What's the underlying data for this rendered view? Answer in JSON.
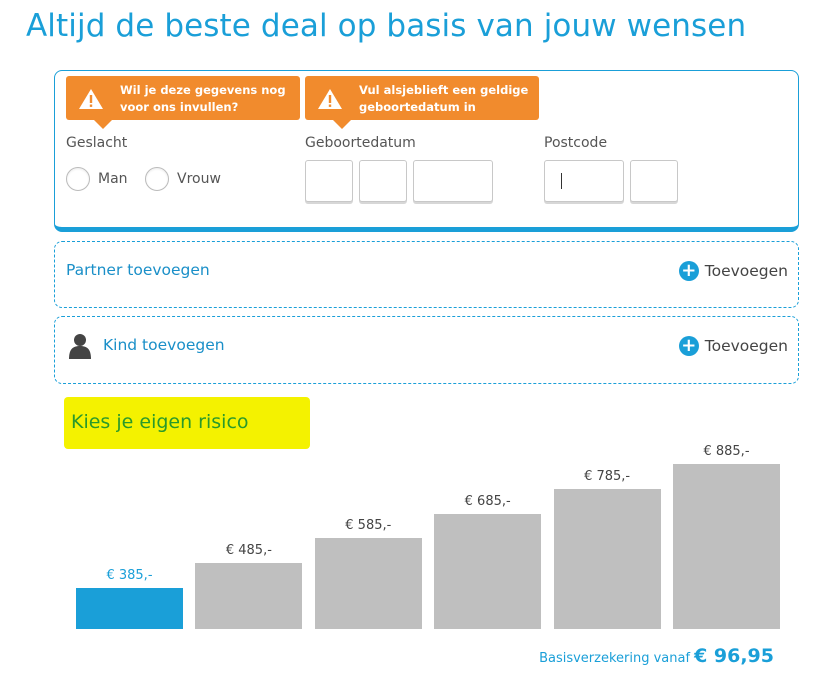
{
  "heading": "Altijd de beste deal op basis van jouw wensen",
  "form": {
    "tooltip_gender": "Wil je deze gegevens nog voor ons invullen?",
    "tooltip_birthdate": "Vul alsjeblieft een geldige geboortedatum in",
    "gender_label": "Geslacht",
    "gender_options": [
      "Man",
      "Vrouw"
    ],
    "birthdate_label": "Geboortedatum",
    "postcode_label": "Postcode"
  },
  "partner_panel": {
    "title": "Partner toevoegen",
    "add_label": "Toevoegen"
  },
  "child_panel": {
    "title": "Kind toevoegen",
    "add_label": "Toevoegen"
  },
  "risk_heading": "Kies je eigen risico",
  "colors": {
    "accent": "#1a9fd8",
    "warning": "#f18b2d",
    "bar_inactive": "#bfbfbf",
    "highlight": "#f4f200"
  },
  "chart_data": {
    "type": "bar",
    "categories": [
      "€ 385,-",
      "€ 485,-",
      "€ 585,-",
      "€ 685,-",
      "€ 785,-",
      "€ 885,-"
    ],
    "values": [
      385,
      485,
      585,
      685,
      785,
      885
    ],
    "selected_index": 0
  },
  "footer": {
    "label": "Basisverzekering vanaf",
    "price": "€ 96,95"
  }
}
